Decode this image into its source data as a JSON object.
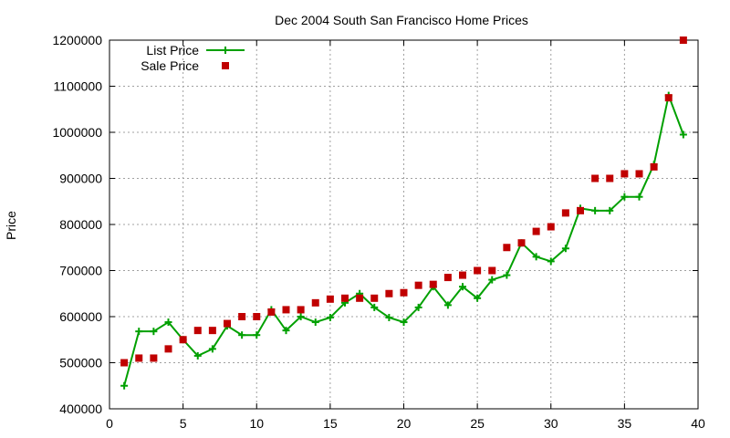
{
  "chart_data": {
    "type": "line",
    "title": "Dec 2004 South San Francisco Home Prices",
    "xlabel": "",
    "ylabel": "Price",
    "xlim": [
      0,
      40
    ],
    "ylim": [
      400000,
      1200000
    ],
    "x_ticks": [
      0,
      5,
      10,
      15,
      20,
      25,
      30,
      35,
      40
    ],
    "y_ticks": [
      400000,
      500000,
      600000,
      700000,
      800000,
      900000,
      1000000,
      1100000,
      1200000
    ],
    "grid": true,
    "legend_position": "top-left",
    "series": [
      {
        "name": "List Price",
        "style": "line-plus",
        "color": "#00a000",
        "x": [
          1,
          2,
          3,
          4,
          5,
          6,
          7,
          8,
          9,
          10,
          11,
          12,
          13,
          14,
          15,
          16,
          17,
          18,
          19,
          20,
          21,
          22,
          23,
          24,
          25,
          26,
          27,
          28,
          29,
          30,
          31,
          32,
          33,
          34,
          35,
          36,
          37,
          38,
          39
        ],
        "y": [
          450000,
          568000,
          568000,
          588000,
          550000,
          515000,
          530000,
          580000,
          560000,
          560000,
          615000,
          570000,
          600000,
          588000,
          598000,
          630000,
          650000,
          620000,
          598000,
          588000,
          620000,
          665000,
          625000,
          665000,
          640000,
          680000,
          690000,
          760000,
          730000,
          720000,
          748000,
          835000,
          830000,
          830000,
          860000,
          860000,
          930000,
          1080000,
          995000
        ]
      },
      {
        "name": "Sale Price",
        "style": "square-points",
        "color": "#c00000",
        "x": [
          1,
          2,
          3,
          4,
          5,
          6,
          7,
          8,
          9,
          10,
          11,
          12,
          13,
          14,
          15,
          16,
          17,
          18,
          19,
          20,
          21,
          22,
          23,
          24,
          25,
          26,
          27,
          28,
          29,
          30,
          31,
          32,
          33,
          34,
          35,
          36,
          37,
          38,
          39
        ],
        "y": [
          500000,
          510000,
          510000,
          530000,
          550000,
          570000,
          570000,
          585000,
          600000,
          600000,
          610000,
          615000,
          615000,
          630000,
          638000,
          640000,
          640000,
          640000,
          650000,
          652000,
          668000,
          670000,
          685000,
          690000,
          700000,
          700000,
          750000,
          760000,
          785000,
          795000,
          825000,
          830000,
          900000,
          900000,
          910000,
          910000,
          925000,
          1075000,
          1200000
        ]
      }
    ]
  }
}
